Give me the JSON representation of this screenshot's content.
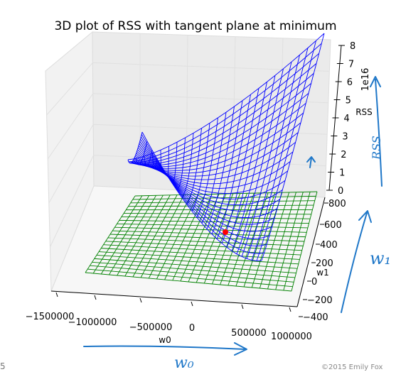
{
  "chart_data": {
    "type": "surface3d",
    "title": "3D plot of RSS with tangent plane at minimum",
    "xlabel": "w0",
    "ylabel": "w1",
    "zlabel": "RSS",
    "z_scale_label": "1e16",
    "x_ticks": [
      "−1500000",
      "−1000000",
      "−500000",
      "0",
      "500000",
      "1000000"
    ],
    "y_ticks": [
      "−400",
      "−200",
      "0",
      "200",
      "400",
      "600",
      "800"
    ],
    "z_ticks": [
      "0",
      "1",
      "2",
      "3",
      "4",
      "5",
      "6",
      "7",
      "8"
    ],
    "xlim": [
      -1500000,
      1000000
    ],
    "ylim": [
      -400,
      800
    ],
    "zlim": [
      0,
      8
    ],
    "surface": {
      "name": "RSS",
      "color": "#0000ff"
    },
    "tangent_plane": {
      "color": "#008000",
      "z": 0
    },
    "minimum_point": {
      "color": "#ff0000"
    },
    "grid": true
  },
  "annotations": {
    "w0_handwritten": "w₀",
    "w1_handwritten": "w₁",
    "rss_handwritten": "RSS"
  },
  "footer": {
    "slide_number": "5",
    "copyright": "©2015 Emily Fox"
  }
}
